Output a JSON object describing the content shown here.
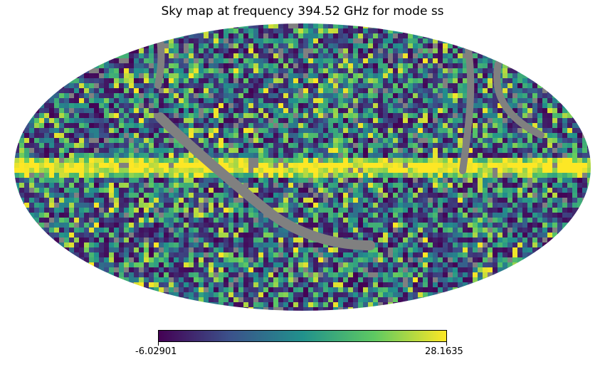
{
  "title": "Sky map at frequency 394.52 GHz for mode ss",
  "colorbar": {
    "min_label": "-6.02901",
    "max_label": "28.1635",
    "min": -6.02901,
    "max": 28.1635,
    "colormap": [
      "#440154",
      "#3b528b",
      "#21918c",
      "#5ec962",
      "#fde725"
    ]
  },
  "map": {
    "projection": "mollweide",
    "masked_color": "#808080",
    "background": "#ffffff"
  }
}
